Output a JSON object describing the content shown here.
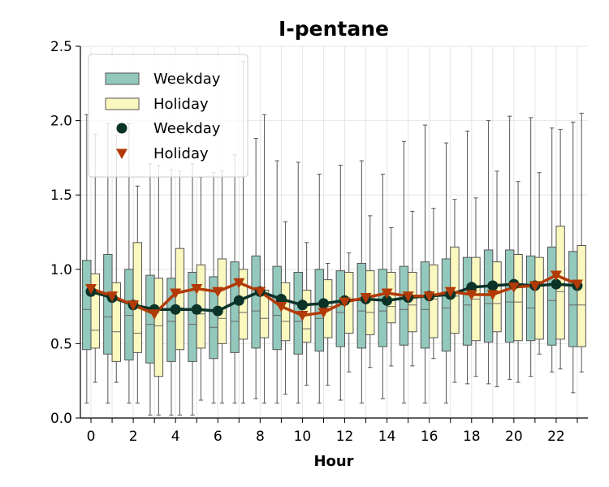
{
  "chart_data": {
    "type": "box",
    "title": "I-pentane",
    "xlabel": "Hour",
    "ylabel": "",
    "ylim": [
      0,
      2.5
    ],
    "xlim": [
      -0.5,
      23.5
    ],
    "yticks": [
      "0.0",
      "0.5",
      "1.0",
      "1.5",
      "2.0",
      "2.5"
    ],
    "xticks": [
      "0",
      "2",
      "4",
      "6",
      "8",
      "10",
      "12",
      "14",
      "16",
      "18",
      "20",
      "22"
    ],
    "grid": true,
    "legend_position": "upper-left",
    "colors": {
      "weekday_box": "#93c8bd",
      "holiday_box": "#faf8bf",
      "weekday_line": "#0b3328",
      "holiday_line": "#b23a06"
    },
    "legend": [
      {
        "label": "Weekday",
        "kind": "box",
        "color": "#93c8bd"
      },
      {
        "label": "Holiday",
        "kind": "box",
        "color": "#faf8bf"
      },
      {
        "label": "Weekday",
        "kind": "circle",
        "color": "#0b3328"
      },
      {
        "label": "Holiday",
        "kind": "triangle",
        "color": "#b23a06"
      }
    ],
    "hours": [
      0,
      1,
      2,
      3,
      4,
      5,
      6,
      7,
      8,
      9,
      10,
      11,
      12,
      13,
      14,
      15,
      16,
      17,
      18,
      19,
      20,
      21,
      22,
      23
    ],
    "weekday_boxes": [
      {
        "whislo": 0.1,
        "q1": 0.46,
        "med": 0.73,
        "q3": 1.06,
        "whishi": 2.04
      },
      {
        "whislo": 0.1,
        "q1": 0.43,
        "med": 0.68,
        "q3": 1.1,
        "whishi": 1.98
      },
      {
        "whislo": 0.1,
        "q1": 0.39,
        "med": 0.69,
        "q3": 1.0,
        "whishi": 1.98
      },
      {
        "whislo": 0.02,
        "q1": 0.37,
        "med": 0.63,
        "q3": 0.96,
        "whishi": 1.71
      },
      {
        "whislo": 0.02,
        "q1": 0.38,
        "med": 0.65,
        "q3": 0.94,
        "whishi": 1.67
      },
      {
        "whislo": 0.02,
        "q1": 0.38,
        "med": 0.63,
        "q3": 0.98,
        "whishi": 1.71
      },
      {
        "whislo": 0.1,
        "q1": 0.4,
        "med": 0.61,
        "q3": 0.95,
        "whishi": 1.65
      },
      {
        "whislo": 0.1,
        "q1": 0.44,
        "med": 0.65,
        "q3": 1.05,
        "whishi": 1.77
      },
      {
        "whislo": 0.13,
        "q1": 0.47,
        "med": 0.72,
        "q3": 1.09,
        "whishi": 1.88
      },
      {
        "whislo": 0.1,
        "q1": 0.46,
        "med": 0.69,
        "q3": 1.02,
        "whishi": 1.73
      },
      {
        "whislo": 0.1,
        "q1": 0.43,
        "med": 0.65,
        "q3": 0.98,
        "whishi": 1.72
      },
      {
        "whislo": 0.1,
        "q1": 0.45,
        "med": 0.67,
        "q3": 1.0,
        "whishi": 1.64
      },
      {
        "whislo": 0.12,
        "q1": 0.48,
        "med": 0.71,
        "q3": 0.99,
        "whishi": 1.7
      },
      {
        "whislo": 0.1,
        "q1": 0.47,
        "med": 0.72,
        "q3": 1.04,
        "whishi": 1.73
      },
      {
        "whislo": 0.13,
        "q1": 0.48,
        "med": 0.72,
        "q3": 1.0,
        "whishi": 1.64
      },
      {
        "whislo": 0.1,
        "q1": 0.49,
        "med": 0.73,
        "q3": 1.02,
        "whishi": 1.86
      },
      {
        "whislo": 0.1,
        "q1": 0.47,
        "med": 0.73,
        "q3": 1.05,
        "whishi": 1.97
      },
      {
        "whislo": 0.1,
        "q1": 0.45,
        "med": 0.74,
        "q3": 1.07,
        "whishi": 1.85
      },
      {
        "whislo": 0.23,
        "q1": 0.49,
        "med": 0.76,
        "q3": 1.08,
        "whishi": 1.93
      },
      {
        "whislo": 0.23,
        "q1": 0.51,
        "med": 0.77,
        "q3": 1.13,
        "whishi": 2.0
      },
      {
        "whislo": 0.26,
        "q1": 0.51,
        "med": 0.78,
        "q3": 1.13,
        "whishi": 2.03
      },
      {
        "whislo": 0.28,
        "q1": 0.52,
        "med": 0.74,
        "q3": 1.09,
        "whishi": 2.02
      },
      {
        "whislo": 0.31,
        "q1": 0.49,
        "med": 0.79,
        "q3": 1.15,
        "whishi": 1.95
      },
      {
        "whislo": 0.17,
        "q1": 0.48,
        "med": 0.76,
        "q3": 1.12,
        "whishi": 1.99
      }
    ],
    "holiday_boxes": [
      {
        "whislo": 0.24,
        "q1": 0.47,
        "med": 0.59,
        "q3": 0.97,
        "whishi": 1.91
      },
      {
        "whislo": 0.24,
        "q1": 0.38,
        "med": 0.58,
        "q3": 0.91,
        "whishi": 1.9
      },
      {
        "whislo": 0.1,
        "q1": 0.44,
        "med": 0.57,
        "q3": 1.18,
        "whishi": 1.56
      },
      {
        "whislo": 0.02,
        "q1": 0.28,
        "med": 0.62,
        "q3": 0.94,
        "whishi": 1.7
      },
      {
        "whislo": 0.02,
        "q1": 0.46,
        "med": 0.74,
        "q3": 1.14,
        "whishi": 1.66
      },
      {
        "whislo": 0.12,
        "q1": 0.47,
        "med": 0.7,
        "q3": 1.03,
        "whishi": 1.62
      },
      {
        "whislo": 0.1,
        "q1": 0.5,
        "med": 0.67,
        "q3": 1.07,
        "whishi": 1.66
      },
      {
        "whislo": 0.1,
        "q1": 0.53,
        "med": 0.71,
        "q3": 1.0,
        "whishi": 2.4
      },
      {
        "whislo": 0.1,
        "q1": 0.54,
        "med": 0.67,
        "q3": 0.86,
        "whishi": 2.04
      },
      {
        "whislo": 0.16,
        "q1": 0.52,
        "med": 0.65,
        "q3": 0.91,
        "whishi": 1.32
      },
      {
        "whislo": 0.22,
        "q1": 0.51,
        "med": 0.6,
        "q3": 0.86,
        "whishi": 1.18
      },
      {
        "whislo": 0.22,
        "q1": 0.54,
        "med": 0.75,
        "q3": 0.93,
        "whishi": 1.04
      },
      {
        "whislo": 0.31,
        "q1": 0.57,
        "med": 0.8,
        "q3": 0.98,
        "whishi": 1.11
      },
      {
        "whislo": 0.34,
        "q1": 0.56,
        "med": 0.71,
        "q3": 0.99,
        "whishi": 1.36
      },
      {
        "whislo": 0.35,
        "q1": 0.64,
        "med": 0.75,
        "q3": 0.98,
        "whishi": 1.28
      },
      {
        "whislo": 0.35,
        "q1": 0.58,
        "med": 0.76,
        "q3": 0.98,
        "whishi": 1.39
      },
      {
        "whislo": 0.4,
        "q1": 0.54,
        "med": 0.8,
        "q3": 1.03,
        "whishi": 1.41
      },
      {
        "whislo": 0.24,
        "q1": 0.57,
        "med": 0.82,
        "q3": 1.15,
        "whishi": 1.47
      },
      {
        "whislo": 0.28,
        "q1": 0.52,
        "med": 0.8,
        "q3": 1.08,
        "whishi": 1.48
      },
      {
        "whislo": 0.21,
        "q1": 0.58,
        "med": 0.77,
        "q3": 1.05,
        "whishi": 1.66
      },
      {
        "whislo": 0.24,
        "q1": 0.52,
        "med": 0.78,
        "q3": 1.1,
        "whishi": 1.59
      },
      {
        "whislo": 0.43,
        "q1": 0.53,
        "med": 0.89,
        "q3": 1.08,
        "whishi": 1.65
      },
      {
        "whislo": 0.33,
        "q1": 0.53,
        "med": 0.85,
        "q3": 1.29,
        "whishi": 1.94
      },
      {
        "whislo": 0.31,
        "q1": 0.48,
        "med": 0.76,
        "q3": 1.16,
        "whishi": 2.05
      }
    ],
    "weekday_mean": [
      0.85,
      0.81,
      0.76,
      0.73,
      0.73,
      0.73,
      0.72,
      0.79,
      0.85,
      0.8,
      0.76,
      0.77,
      0.79,
      0.8,
      0.79,
      0.81,
      0.82,
      0.83,
      0.88,
      0.89,
      0.9,
      0.89,
      0.9,
      0.89
    ],
    "holiday_mean": [
      0.87,
      0.82,
      0.76,
      0.7,
      0.84,
      0.87,
      0.85,
      0.91,
      0.85,
      0.75,
      0.69,
      0.71,
      0.78,
      0.81,
      0.84,
      0.82,
      0.82,
      0.85,
      0.83,
      0.83,
      0.88,
      0.89,
      0.96,
      0.9
    ]
  }
}
